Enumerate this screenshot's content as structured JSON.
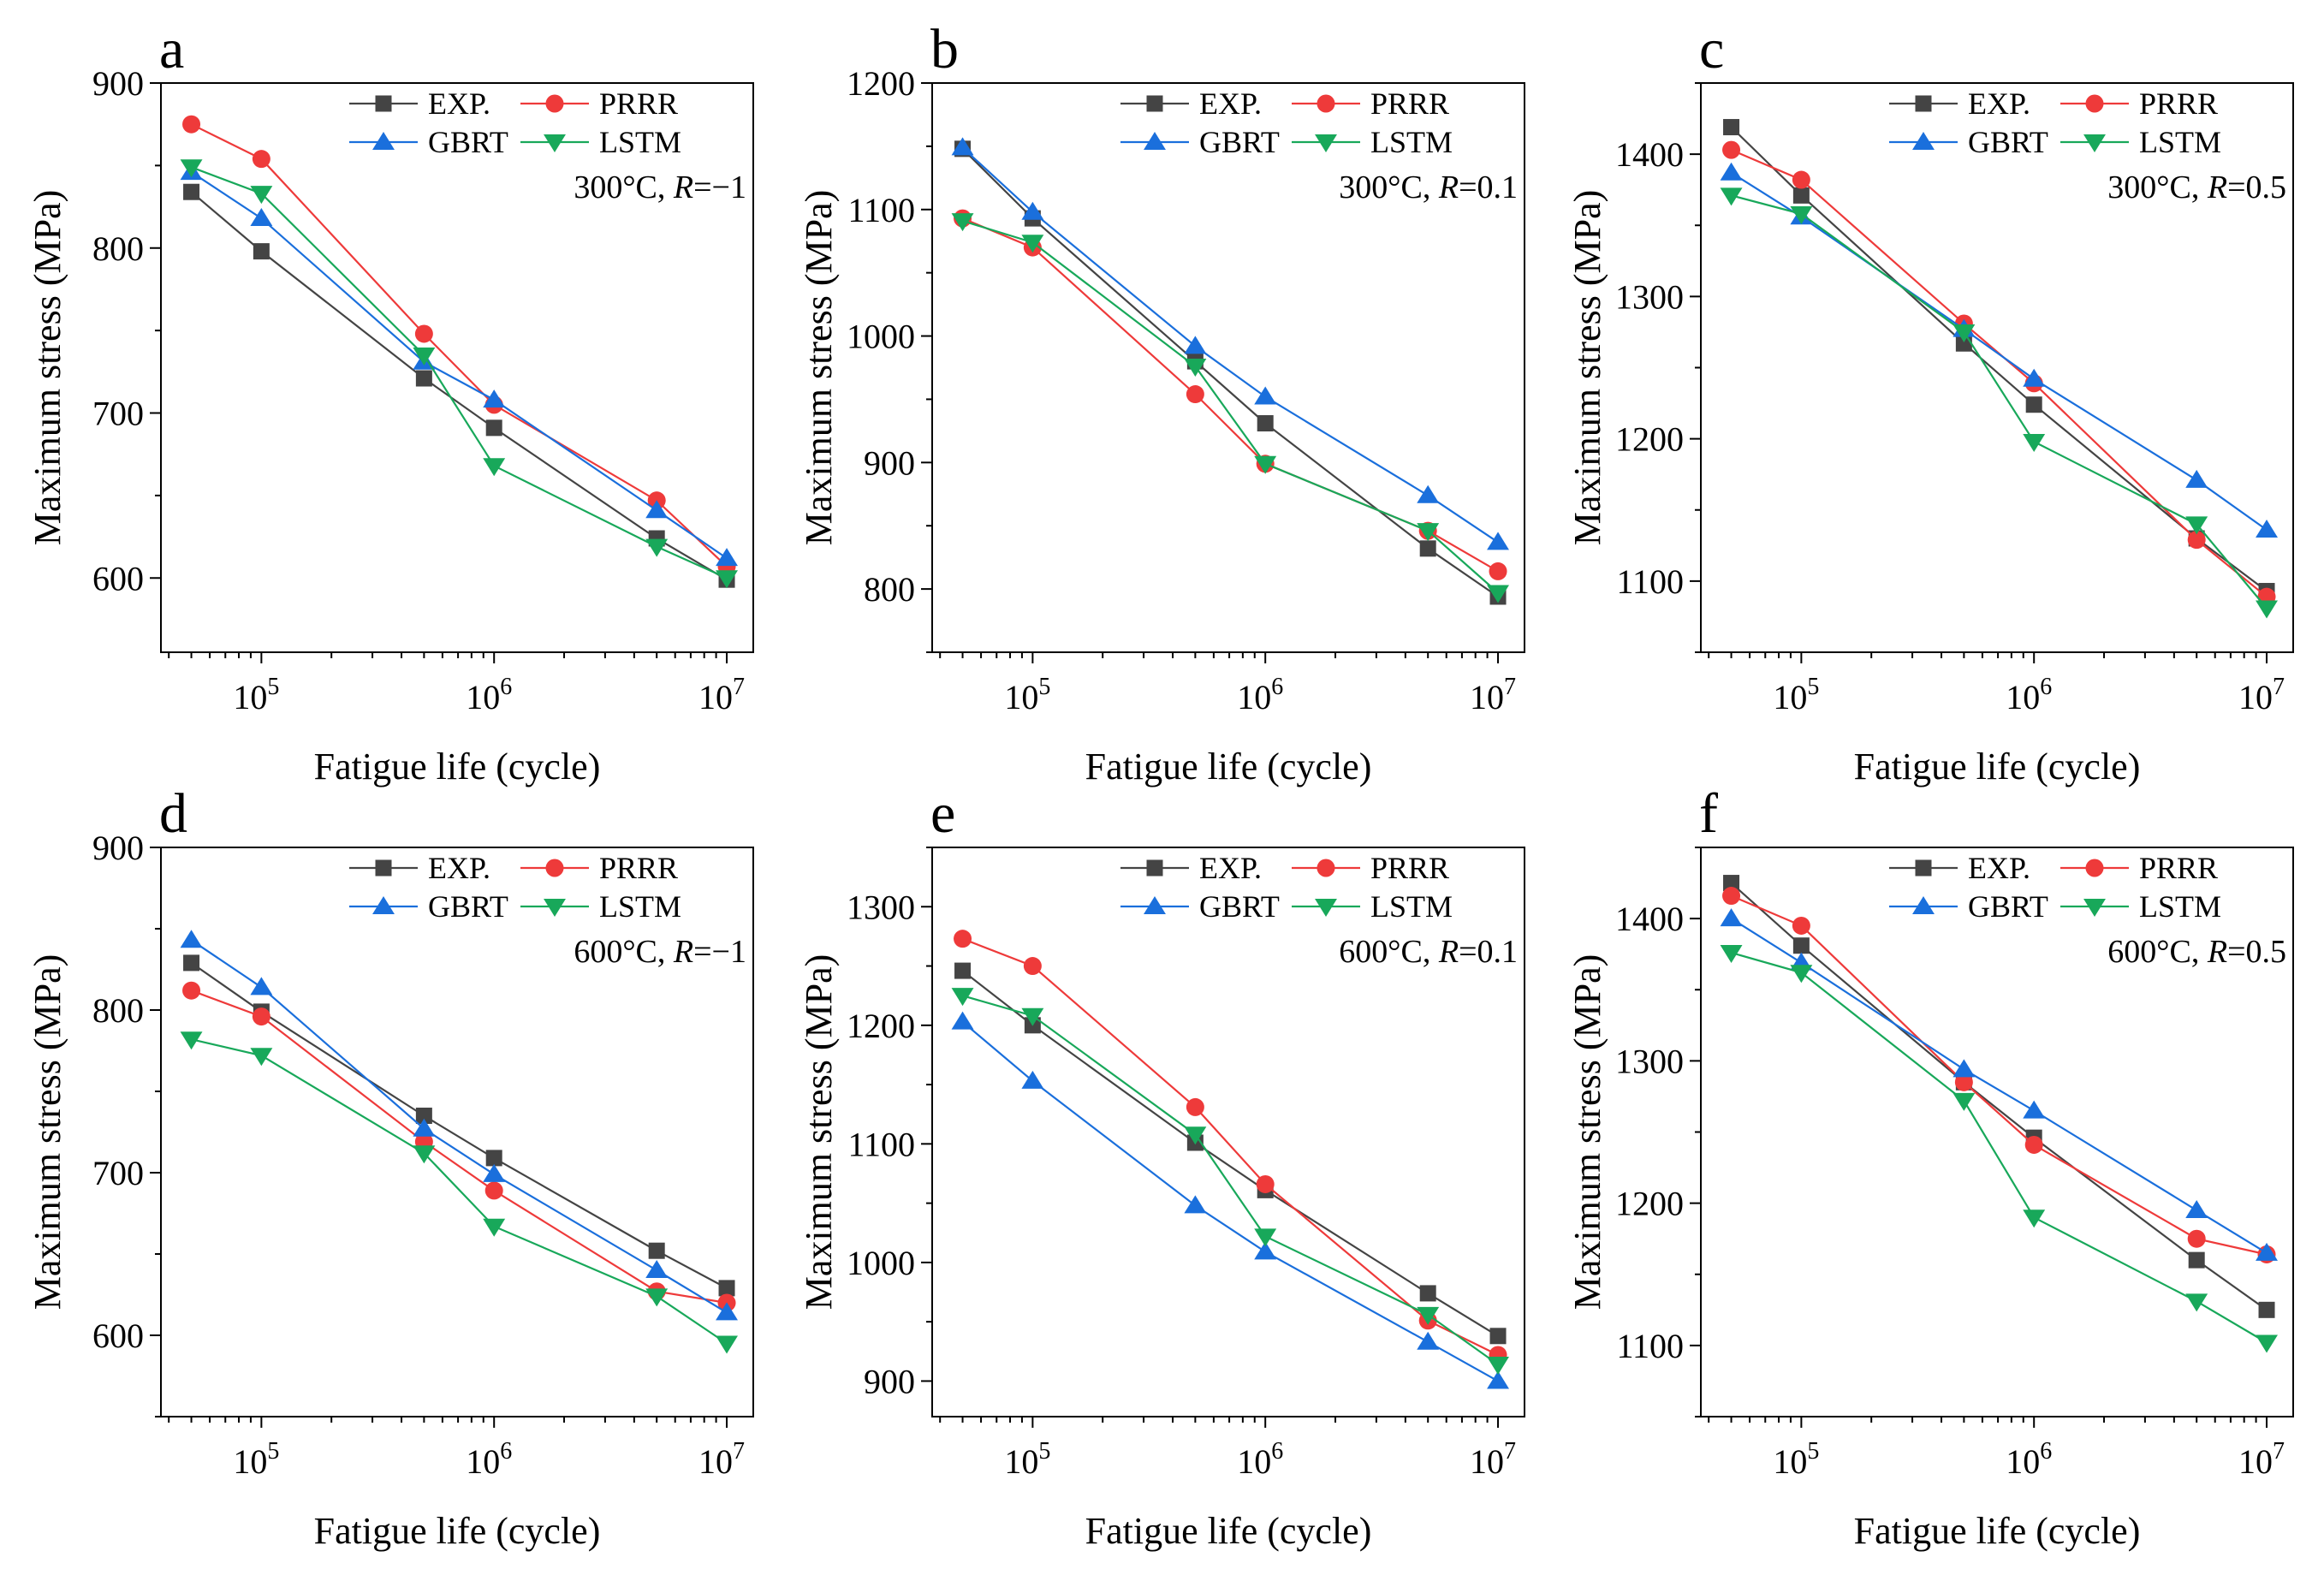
{
  "figure": {
    "xlabel": "Fatigue life (cycle)",
    "ylabel": "Maximum stress (MPa)",
    "x_tick_labels": [
      {
        "base": "10",
        "exp": "5"
      },
      {
        "base": "10",
        "exp": "6"
      },
      {
        "base": "10",
        "exp": "7"
      }
    ],
    "legend": {
      "exp": "EXP.",
      "prrr": "PRRR",
      "gbrt": "GBRT",
      "lstm": "LSTM"
    },
    "colors": {
      "EXP.": "#444444",
      "PRRR": "#ee3a3a",
      "GBRT": "#1a6fdc",
      "LSTM": "#18a85a"
    },
    "markers": {
      "EXP.": "square",
      "PRRR": "circle",
      "GBRT": "triangle-up",
      "LSTM": "triangle-down"
    }
  },
  "chart_data": [
    {
      "type": "line",
      "panel": "a",
      "condition": {
        "temp": "300°C, ",
        "rsym": "R",
        "rval": "=−1"
      },
      "xscale": "log",
      "xlim": [
        37000,
        13000000
      ],
      "ylim": [
        555,
        900
      ],
      "yticks": [
        600,
        700,
        800,
        900
      ],
      "x": [
        50000,
        100000,
        500000,
        1000000,
        5000000,
        10000000
      ],
      "series": [
        {
          "name": "EXP.",
          "values": [
            834,
            798,
            721,
            691,
            624,
            599
          ]
        },
        {
          "name": "PRRR",
          "values": [
            875,
            854,
            748,
            705,
            647,
            607
          ]
        },
        {
          "name": "GBRT",
          "values": [
            846,
            818,
            731,
            708,
            641,
            612
          ]
        },
        {
          "name": "LSTM",
          "values": [
            849,
            833,
            735,
            668,
            619,
            600
          ]
        }
      ]
    },
    {
      "type": "line",
      "panel": "b",
      "condition": {
        "temp": "300°C, ",
        "rsym": "R",
        "rval": "=0.1"
      },
      "xscale": "log",
      "xlim": [
        37000,
        13000000
      ],
      "ylim": [
        750,
        1200
      ],
      "yticks": [
        800,
        900,
        1000,
        1100,
        1200
      ],
      "x": [
        50000,
        100000,
        500000,
        1000000,
        5000000,
        10000000
      ],
      "series": [
        {
          "name": "EXP.",
          "values": [
            1148,
            1093,
            980,
            931,
            832,
            794
          ]
        },
        {
          "name": "PRRR",
          "values": [
            1093,
            1070,
            954,
            899,
            846,
            814
          ]
        },
        {
          "name": "GBRT",
          "values": [
            1149,
            1098,
            992,
            952,
            874,
            837
          ]
        },
        {
          "name": "LSTM",
          "values": [
            1091,
            1074,
            976,
            899,
            846,
            797
          ]
        }
      ]
    },
    {
      "type": "line",
      "panel": "c",
      "condition": {
        "temp": "300°C, ",
        "rsym": "R",
        "rval": "=0.5"
      },
      "xscale": "log",
      "xlim": [
        37000,
        13000000
      ],
      "ylim": [
        1050,
        1450
      ],
      "yticks": [
        1100,
        1200,
        1300,
        1400
      ],
      "x": [
        50000,
        100000,
        500000,
        1000000,
        5000000,
        10000000
      ],
      "series": [
        {
          "name": "EXP.",
          "values": [
            1419,
            1371,
            1267,
            1224,
            1130,
            1093
          ]
        },
        {
          "name": "PRRR",
          "values": [
            1403,
            1382,
            1281,
            1239,
            1129,
            1089
          ]
        },
        {
          "name": "GBRT",
          "values": [
            1387,
            1356,
            1277,
            1242,
            1171,
            1136
          ]
        },
        {
          "name": "LSTM",
          "values": [
            1371,
            1358,
            1275,
            1198,
            1140,
            1081
          ]
        }
      ]
    },
    {
      "type": "line",
      "panel": "d",
      "condition": {
        "temp": "600°C, ",
        "rsym": "R",
        "rval": "=−1"
      },
      "xscale": "log",
      "xlim": [
        37000,
        13000000
      ],
      "ylim": [
        550,
        900
      ],
      "yticks": [
        600,
        700,
        800,
        900
      ],
      "x": [
        50000,
        100000,
        500000,
        1000000,
        5000000,
        10000000
      ],
      "series": [
        {
          "name": "EXP.",
          "values": [
            829,
            799,
            735,
            709,
            652,
            629
          ]
        },
        {
          "name": "PRRR",
          "values": [
            812,
            796,
            719,
            689,
            627,
            620
          ]
        },
        {
          "name": "GBRT",
          "values": [
            843,
            814,
            727,
            699,
            640,
            614
          ]
        },
        {
          "name": "LSTM",
          "values": [
            782,
            772,
            712,
            667,
            624,
            595
          ]
        }
      ]
    },
    {
      "type": "line",
      "panel": "e",
      "condition": {
        "temp": "600°C, ",
        "rsym": "R",
        "rval": "=0.1"
      },
      "xscale": "log",
      "xlim": [
        37000,
        13000000
      ],
      "ylim": [
        870,
        1350
      ],
      "yticks": [
        900,
        1000,
        1100,
        1200,
        1300
      ],
      "x": [
        50000,
        100000,
        500000,
        1000000,
        5000000,
        10000000
      ],
      "series": [
        {
          "name": "EXP.",
          "values": [
            1246,
            1200,
            1101,
            1061,
            974,
            938
          ]
        },
        {
          "name": "PRRR",
          "values": [
            1273,
            1250,
            1131,
            1066,
            951,
            922
          ]
        },
        {
          "name": "GBRT",
          "values": [
            1203,
            1153,
            1048,
            1009,
            933,
            900
          ]
        },
        {
          "name": "LSTM",
          "values": [
            1225,
            1208,
            1108,
            1022,
            956,
            914
          ]
        }
      ]
    },
    {
      "type": "line",
      "panel": "f",
      "condition": {
        "temp": "600°C, ",
        "rsym": "R",
        "rval": "=0.5"
      },
      "xscale": "log",
      "xlim": [
        37000,
        13000000
      ],
      "ylim": [
        1050,
        1450
      ],
      "yticks": [
        1100,
        1200,
        1300,
        1400
      ],
      "x": [
        50000,
        100000,
        500000,
        1000000,
        5000000,
        10000000
      ],
      "series": [
        {
          "name": "EXP.",
          "values": [
            1425,
            1381,
            1285,
            1246,
            1160,
            1125
          ]
        },
        {
          "name": "PRRR",
          "values": [
            1416,
            1395,
            1285,
            1241,
            1175,
            1164
          ]
        },
        {
          "name": "GBRT",
          "values": [
            1400,
            1369,
            1294,
            1265,
            1195,
            1165
          ]
        },
        {
          "name": "LSTM",
          "values": [
            1376,
            1362,
            1272,
            1190,
            1131,
            1102
          ]
        }
      ]
    }
  ]
}
